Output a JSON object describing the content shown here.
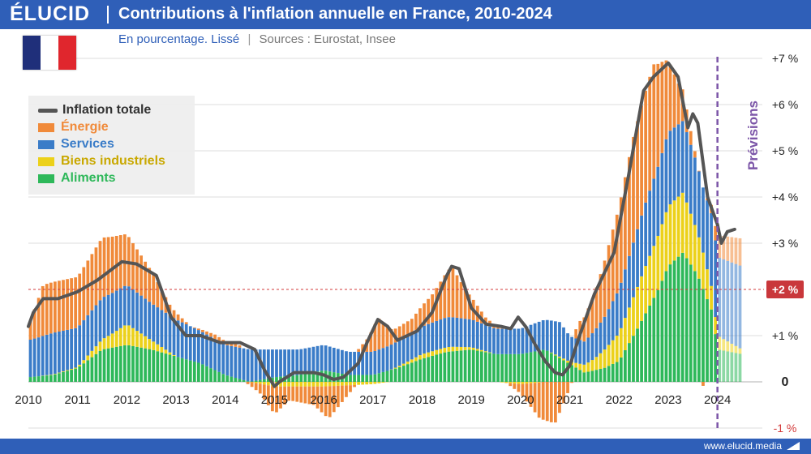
{
  "header": {
    "logo": "ÉLUCID",
    "title": "Contributions à l'inflation annuelle en France, 2010-2024",
    "subtitle_unit": "En pourcentage. Lissé",
    "subtitle_sep": "|",
    "subtitle_sources": "Sources : Eurostat, Insee"
  },
  "footer": {
    "site": "www.elucid.media"
  },
  "colors": {
    "energie": "#f08a3a",
    "services": "#3a7cc8",
    "biens": "#ecd11a",
    "aliments": "#2eb85a",
    "total": "#555555",
    "header": "#2f5fb8",
    "target": "#d33a3a"
  },
  "chart_data": {
    "type": "bar",
    "stacked": true,
    "title": "Contributions à l'inflation annuelle en France, 2010-2024",
    "x_ticks": [
      "2010",
      "2011",
      "2012",
      "2013",
      "2014",
      "2015",
      "2016",
      "2017",
      "2018",
      "2019",
      "2020",
      "2021",
      "2022",
      "2023",
      "2024"
    ],
    "y_ticks": [
      {
        "value": 7,
        "label": "+7 %"
      },
      {
        "value": 6,
        "label": "+6 %"
      },
      {
        "value": 5,
        "label": "+5 %"
      },
      {
        "value": 4,
        "label": "+4 %"
      },
      {
        "value": 3,
        "label": "+3 %"
      },
      {
        "value": 1,
        "label": "+1 %"
      },
      {
        "value": 0,
        "label": "0"
      },
      {
        "value": -1,
        "label": "-1 %"
      }
    ],
    "ylim": [
      -1,
      7
    ],
    "xlim": [
      2010.0,
      2024.5
    ],
    "target_line": {
      "value": 2,
      "label": "+2 %"
    },
    "forecast_start": 2024.0,
    "forecast_label": "Prévisions",
    "legend": [
      "Inflation totale",
      "Énergie",
      "Services",
      "Biens industriels",
      "Aliments"
    ],
    "series": [
      {
        "name": "Énergie",
        "key": "energie",
        "points": [
          [
            2010.0,
            0.3
          ],
          [
            2010.3,
            1.1
          ],
          [
            2011.0,
            1.1
          ],
          [
            2011.5,
            1.3
          ],
          [
            2012.0,
            1.1
          ],
          [
            2012.5,
            0.7
          ],
          [
            2012.9,
            0.2
          ],
          [
            2013.3,
            0.0
          ],
          [
            2013.8,
            0.1
          ],
          [
            2014.3,
            0.05
          ],
          [
            2014.7,
            -0.2
          ],
          [
            2015.0,
            -0.6
          ],
          [
            2015.3,
            -0.3
          ],
          [
            2015.8,
            -0.4
          ],
          [
            2016.1,
            -0.7
          ],
          [
            2016.5,
            -0.2
          ],
          [
            2016.9,
            0.3
          ],
          [
            2017.1,
            0.7
          ],
          [
            2017.4,
            0.3
          ],
          [
            2017.8,
            0.3
          ],
          [
            2018.2,
            0.6
          ],
          [
            2018.6,
            1.1
          ],
          [
            2018.9,
            0.6
          ],
          [
            2019.3,
            0.15
          ],
          [
            2019.7,
            0.0
          ],
          [
            2020.0,
            -0.2
          ],
          [
            2020.4,
            -0.8
          ],
          [
            2020.7,
            -0.9
          ],
          [
            2020.9,
            -0.4
          ],
          [
            2021.2,
            0.4
          ],
          [
            2021.5,
            0.8
          ],
          [
            2021.9,
            1.6
          ],
          [
            2022.3,
            2.3
          ],
          [
            2022.7,
            2.5
          ],
          [
            2022.9,
            1.9
          ],
          [
            2023.2,
            0.9
          ],
          [
            2023.5,
            0.2
          ],
          [
            2023.7,
            -0.1
          ],
          [
            2023.95,
            0.3
          ],
          [
            2024.1,
            0.5
          ],
          [
            2024.5,
            0.6
          ]
        ]
      },
      {
        "name": "Services",
        "key": "services",
        "points": [
          [
            2010.0,
            0.8
          ],
          [
            2010.5,
            0.9
          ],
          [
            2011.0,
            0.85
          ],
          [
            2011.5,
            0.9
          ],
          [
            2012.0,
            0.85
          ],
          [
            2012.5,
            0.8
          ],
          [
            2013.0,
            0.8
          ],
          [
            2013.5,
            0.7
          ],
          [
            2014.0,
            0.65
          ],
          [
            2014.5,
            0.7
          ],
          [
            2015.0,
            0.6
          ],
          [
            2015.5,
            0.55
          ],
          [
            2016.0,
            0.55
          ],
          [
            2016.5,
            0.5
          ],
          [
            2017.0,
            0.5
          ],
          [
            2017.5,
            0.55
          ],
          [
            2018.0,
            0.6
          ],
          [
            2018.5,
            0.65
          ],
          [
            2019.0,
            0.6
          ],
          [
            2019.5,
            0.55
          ],
          [
            2020.0,
            0.55
          ],
          [
            2020.5,
            0.65
          ],
          [
            2020.8,
            0.75
          ],
          [
            2021.0,
            0.55
          ],
          [
            2021.3,
            0.5
          ],
          [
            2021.7,
            0.7
          ],
          [
            2022.0,
            0.95
          ],
          [
            2022.5,
            1.35
          ],
          [
            2023.0,
            1.6
          ],
          [
            2023.3,
            1.55
          ],
          [
            2023.7,
            1.4
          ],
          [
            2024.0,
            1.7
          ],
          [
            2024.5,
            1.8
          ]
        ]
      },
      {
        "name": "Biens industriels",
        "key": "biens",
        "points": [
          [
            2010.0,
            0.0
          ],
          [
            2011.0,
            0.02
          ],
          [
            2011.7,
            0.3
          ],
          [
            2012.0,
            0.45
          ],
          [
            2012.5,
            0.2
          ],
          [
            2013.0,
            0.0
          ],
          [
            2013.5,
            0.0
          ],
          [
            2014.5,
            0.0
          ],
          [
            2015.0,
            -0.1
          ],
          [
            2016.0,
            -0.1
          ],
          [
            2017.0,
            -0.05
          ],
          [
            2018.0,
            0.1
          ],
          [
            2018.6,
            0.1
          ],
          [
            2019.0,
            0.05
          ],
          [
            2020.0,
            -0.05
          ],
          [
            2021.0,
            0.05
          ],
          [
            2021.5,
            0.25
          ],
          [
            2022.0,
            0.6
          ],
          [
            2022.5,
            1.0
          ],
          [
            2023.0,
            1.3
          ],
          [
            2023.3,
            1.3
          ],
          [
            2023.7,
            0.8
          ],
          [
            2024.0,
            0.3
          ],
          [
            2024.5,
            0.1
          ]
        ]
      },
      {
        "name": "Aliments",
        "key": "aliments",
        "points": [
          [
            2010.0,
            0.1
          ],
          [
            2010.5,
            0.15
          ],
          [
            2011.0,
            0.3
          ],
          [
            2011.5,
            0.7
          ],
          [
            2012.0,
            0.8
          ],
          [
            2012.5,
            0.7
          ],
          [
            2013.0,
            0.55
          ],
          [
            2013.5,
            0.4
          ],
          [
            2014.0,
            0.15
          ],
          [
            2014.5,
            0.0
          ],
          [
            2015.0,
            0.1
          ],
          [
            2015.5,
            0.15
          ],
          [
            2016.0,
            0.25
          ],
          [
            2016.5,
            0.15
          ],
          [
            2017.0,
            0.15
          ],
          [
            2017.5,
            0.3
          ],
          [
            2018.0,
            0.5
          ],
          [
            2018.5,
            0.65
          ],
          [
            2019.0,
            0.7
          ],
          [
            2019.5,
            0.6
          ],
          [
            2020.0,
            0.6
          ],
          [
            2020.5,
            0.7
          ],
          [
            2020.9,
            0.45
          ],
          [
            2021.3,
            0.2
          ],
          [
            2021.7,
            0.3
          ],
          [
            2022.0,
            0.45
          ],
          [
            2022.4,
            1.2
          ],
          [
            2022.8,
            2.0
          ],
          [
            2023.0,
            2.5
          ],
          [
            2023.3,
            2.8
          ],
          [
            2023.6,
            2.3
          ],
          [
            2023.9,
            1.5
          ],
          [
            2024.0,
            0.7
          ],
          [
            2024.5,
            0.6
          ]
        ]
      }
    ],
    "total": {
      "name": "Inflation totale",
      "points": [
        [
          2010.0,
          1.2
        ],
        [
          2010.1,
          1.5
        ],
        [
          2010.3,
          1.8
        ],
        [
          2010.6,
          1.8
        ],
        [
          2011.0,
          1.95
        ],
        [
          2011.4,
          2.2
        ],
        [
          2011.9,
          2.6
        ],
        [
          2012.2,
          2.55
        ],
        [
          2012.6,
          2.3
        ],
        [
          2012.9,
          1.4
        ],
        [
          2013.2,
          1.0
        ],
        [
          2013.5,
          1.0
        ],
        [
          2013.9,
          0.85
        ],
        [
          2014.3,
          0.85
        ],
        [
          2014.6,
          0.7
        ],
        [
          2014.8,
          0.25
        ],
        [
          2015.0,
          -0.1
        ],
        [
          2015.1,
          0.0
        ],
        [
          2015.4,
          0.2
        ],
        [
          2015.8,
          0.2
        ],
        [
          2016.0,
          0.15
        ],
        [
          2016.2,
          0.05
        ],
        [
          2016.4,
          0.1
        ],
        [
          2016.7,
          0.4
        ],
        [
          2016.9,
          0.9
        ],
        [
          2017.1,
          1.35
        ],
        [
          2017.3,
          1.2
        ],
        [
          2017.5,
          0.9
        ],
        [
          2017.9,
          1.1
        ],
        [
          2018.2,
          1.5
        ],
        [
          2018.5,
          2.3
        ],
        [
          2018.6,
          2.5
        ],
        [
          2018.75,
          2.45
        ],
        [
          2019.0,
          1.6
        ],
        [
          2019.3,
          1.25
        ],
        [
          2019.6,
          1.2
        ],
        [
          2019.8,
          1.15
        ],
        [
          2019.95,
          1.4
        ],
        [
          2020.1,
          1.2
        ],
        [
          2020.3,
          0.8
        ],
        [
          2020.5,
          0.45
        ],
        [
          2020.7,
          0.2
        ],
        [
          2020.85,
          0.15
        ],
        [
          2021.0,
          0.35
        ],
        [
          2021.2,
          1.0
        ],
        [
          2021.5,
          1.9
        ],
        [
          2021.9,
          2.8
        ],
        [
          2022.2,
          4.5
        ],
        [
          2022.5,
          6.3
        ],
        [
          2022.7,
          6.6
        ],
        [
          2022.9,
          6.8
        ],
        [
          2023.0,
          6.9
        ],
        [
          2023.2,
          6.6
        ],
        [
          2023.4,
          5.5
        ],
        [
          2023.5,
          5.8
        ],
        [
          2023.6,
          5.6
        ],
        [
          2023.8,
          4.0
        ],
        [
          2024.0,
          3.4
        ],
        [
          2024.08,
          3.0
        ],
        [
          2024.2,
          3.25
        ],
        [
          2024.35,
          3.3
        ]
      ]
    }
  }
}
